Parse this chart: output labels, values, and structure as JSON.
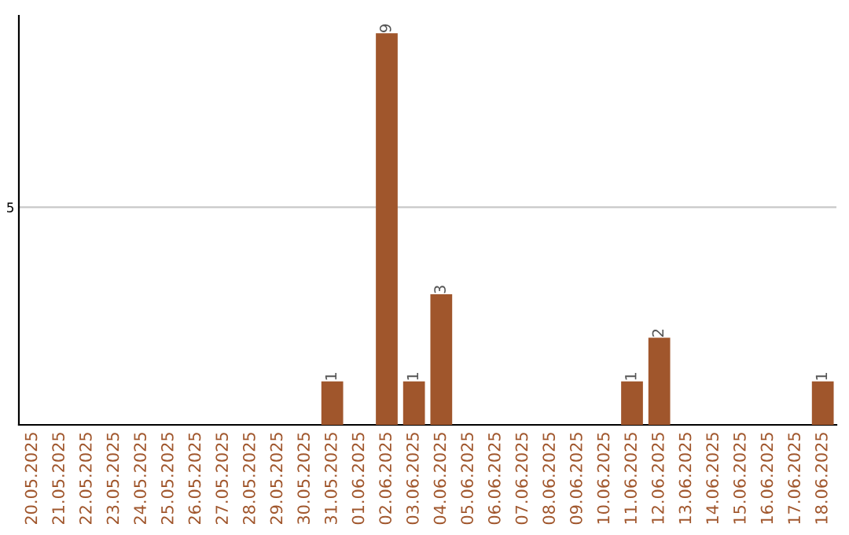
{
  "chart_data": {
    "type": "bar",
    "categories": [
      "20.05.2025",
      "21.05.2025",
      "22.05.2025",
      "23.05.2025",
      "24.05.2025",
      "25.05.2025",
      "26.05.2025",
      "27.05.2025",
      "28.05.2025",
      "29.05.2025",
      "30.05.2025",
      "31.05.2025",
      "01.06.2025",
      "02.06.2025",
      "03.06.2025",
      "04.06.2025",
      "05.06.2025",
      "06.06.2025",
      "07.06.2025",
      "08.06.2025",
      "09.06.2025",
      "10.06.2025",
      "11.06.2025",
      "12.06.2025",
      "13.06.2025",
      "14.06.2025",
      "15.06.2025",
      "16.06.2025",
      "17.06.2025",
      "18.06.2025"
    ],
    "values": [
      0,
      0,
      0,
      0,
      0,
      0,
      0,
      0,
      0,
      0,
      0,
      1,
      0,
      9,
      1,
      3,
      0,
      0,
      0,
      0,
      0,
      0,
      1,
      2,
      0,
      0,
      0,
      0,
      0,
      1
    ],
    "value_labels": [
      null,
      null,
      null,
      null,
      null,
      null,
      null,
      null,
      null,
      null,
      null,
      "1",
      null,
      "9",
      "1",
      "3",
      null,
      null,
      null,
      null,
      null,
      null,
      "1",
      "2",
      null,
      null,
      null,
      null,
      null,
      "1"
    ],
    "color": "#a0562c",
    "ylim": [
      0,
      9.4
    ],
    "yticks": [
      5
    ],
    "grid": "y"
  }
}
